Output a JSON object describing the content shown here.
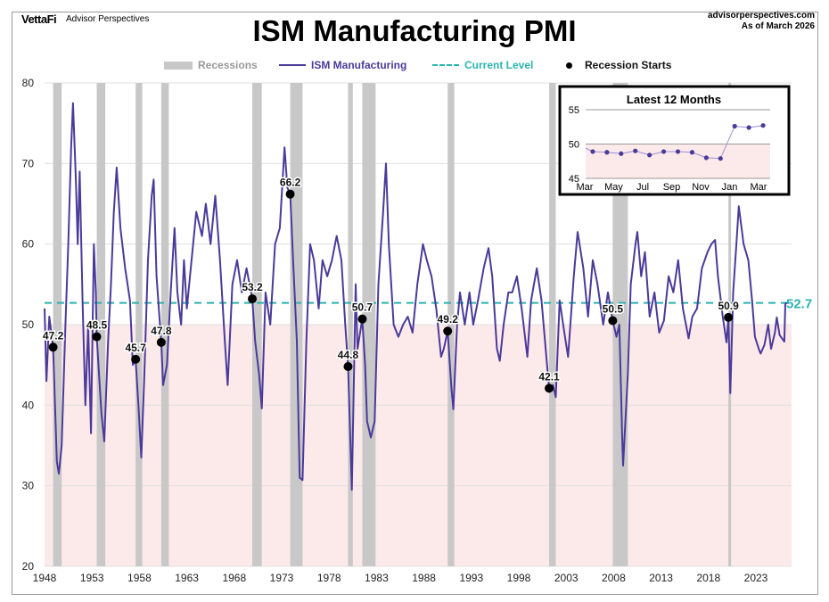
{
  "header": {
    "brand": "VettaFi",
    "brand_sub": "Advisor Perspectives",
    "site": "advisorperspectives.com",
    "as_of": "As of  March 2026"
  },
  "colors": {
    "line": "#4B3A9A",
    "current": "#2BB3B0",
    "recession": "#C8C8C8",
    "below50": "#FCEAEA",
    "marker": "#000000"
  },
  "chart_data": {
    "type": "line",
    "title": "ISM Manufacturing PMI",
    "legend": {
      "placement": "top",
      "items": [
        "Recessions",
        "ISM Manufacturing",
        "Current Level",
        "Recession Starts"
      ]
    },
    "ylim": [
      20,
      80
    ],
    "xlim": [
      1948,
      2026.3
    ],
    "yticks": [
      20,
      30,
      40,
      50,
      60,
      70,
      80
    ],
    "xticks": [
      1948,
      1953,
      1958,
      1963,
      1968,
      1973,
      1978,
      1983,
      1988,
      1993,
      1998,
      2003,
      2008,
      2013,
      2018,
      2023
    ],
    "current_level": 52.7,
    "current_label": "52.7",
    "recessions": [
      [
        1948.9,
        1949.8
      ],
      [
        1953.5,
        1954.4
      ],
      [
        1957.6,
        1958.3
      ],
      [
        1960.3,
        1961.1
      ],
      [
        1969.9,
        1970.9
      ],
      [
        1973.9,
        1975.2
      ],
      [
        1980.0,
        1980.5
      ],
      [
        1981.5,
        1982.9
      ],
      [
        1990.5,
        1991.2
      ],
      [
        2001.2,
        2001.9
      ],
      [
        2007.9,
        2009.5
      ],
      [
        2020.1,
        2020.3
      ]
    ],
    "recession_starts": [
      [
        1948.9,
        47.2,
        "47.2"
      ],
      [
        1953.5,
        48.5,
        "48.5"
      ],
      [
        1957.6,
        45.7,
        "45.7"
      ],
      [
        1960.3,
        47.8,
        "47.8"
      ],
      [
        1969.9,
        53.2,
        "53.2"
      ],
      [
        1973.9,
        66.2,
        "66.2"
      ],
      [
        1980.0,
        44.8,
        "44.8"
      ],
      [
        1981.5,
        50.7,
        "50.7"
      ],
      [
        1990.5,
        49.2,
        "49.2"
      ],
      [
        2001.2,
        42.1,
        "42.1"
      ],
      [
        2007.9,
        50.5,
        "50.5"
      ],
      [
        2020.1,
        50.9,
        "50.9"
      ]
    ],
    "series": [
      {
        "name": "ISM Manufacturing",
        "points": [
          [
            1948.0,
            52
          ],
          [
            1948.2,
            43
          ],
          [
            1948.5,
            51
          ],
          [
            1948.9,
            47.2
          ],
          [
            1949.3,
            33
          ],
          [
            1949.5,
            31.5
          ],
          [
            1949.8,
            35
          ],
          [
            1950.2,
            50
          ],
          [
            1950.5,
            60
          ],
          [
            1950.8,
            72
          ],
          [
            1951.0,
            77.5
          ],
          [
            1951.3,
            68
          ],
          [
            1951.5,
            60
          ],
          [
            1951.7,
            69
          ],
          [
            1952.0,
            53
          ],
          [
            1952.3,
            40
          ],
          [
            1952.6,
            50
          ],
          [
            1952.9,
            36.5
          ],
          [
            1953.2,
            60
          ],
          [
            1953.4,
            54
          ],
          [
            1953.5,
            48.5
          ],
          [
            1954.0,
            39
          ],
          [
            1954.3,
            35.5
          ],
          [
            1954.7,
            48
          ],
          [
            1955.0,
            55
          ],
          [
            1955.3,
            64
          ],
          [
            1955.6,
            69.5
          ],
          [
            1956.0,
            62
          ],
          [
            1956.5,
            57
          ],
          [
            1957.0,
            53
          ],
          [
            1957.3,
            45
          ],
          [
            1957.6,
            45.7
          ],
          [
            1957.9,
            40
          ],
          [
            1958.2,
            33.5
          ],
          [
            1958.5,
            43
          ],
          [
            1958.9,
            58
          ],
          [
            1959.3,
            66
          ],
          [
            1959.5,
            68
          ],
          [
            1959.8,
            56
          ],
          [
            1960.3,
            47.8
          ],
          [
            1960.5,
            42.5
          ],
          [
            1960.9,
            45
          ],
          [
            1961.3,
            54
          ],
          [
            1961.7,
            62
          ],
          [
            1962.0,
            54
          ],
          [
            1962.4,
            50
          ],
          [
            1962.7,
            58
          ],
          [
            1963.0,
            52
          ],
          [
            1963.5,
            58
          ],
          [
            1964.0,
            64
          ],
          [
            1964.6,
            61
          ],
          [
            1965.0,
            65
          ],
          [
            1965.5,
            60
          ],
          [
            1966.0,
            66
          ],
          [
            1966.5,
            58
          ],
          [
            1967.0,
            48
          ],
          [
            1967.3,
            42.5
          ],
          [
            1967.8,
            55
          ],
          [
            1968.3,
            58
          ],
          [
            1968.8,
            54
          ],
          [
            1969.3,
            57
          ],
          [
            1969.9,
            53.2
          ],
          [
            1970.2,
            48
          ],
          [
            1970.6,
            44
          ],
          [
            1970.9,
            39.6
          ],
          [
            1971.3,
            54
          ],
          [
            1971.8,
            50
          ],
          [
            1972.3,
            60
          ],
          [
            1972.8,
            62
          ],
          [
            1973.3,
            72
          ],
          [
            1973.6,
            67
          ],
          [
            1973.9,
            66.2
          ],
          [
            1974.2,
            58
          ],
          [
            1974.6,
            48
          ],
          [
            1974.9,
            31
          ],
          [
            1975.2,
            30.7
          ],
          [
            1975.6,
            48
          ],
          [
            1976.0,
            60
          ],
          [
            1976.4,
            58
          ],
          [
            1976.9,
            52
          ],
          [
            1977.3,
            58
          ],
          [
            1977.8,
            56
          ],
          [
            1978.3,
            58
          ],
          [
            1978.8,
            61
          ],
          [
            1979.3,
            58
          ],
          [
            1979.7,
            50
          ],
          [
            1980.0,
            44.8
          ],
          [
            1980.4,
            29.5
          ],
          [
            1980.8,
            55
          ],
          [
            1981.0,
            47
          ],
          [
            1981.5,
            50.7
          ],
          [
            1981.8,
            45
          ],
          [
            1982.0,
            38
          ],
          [
            1982.4,
            36
          ],
          [
            1982.8,
            38
          ],
          [
            1983.2,
            55
          ],
          [
            1983.7,
            64
          ],
          [
            1984.0,
            70
          ],
          [
            1984.3,
            60
          ],
          [
            1984.8,
            50
          ],
          [
            1985.3,
            48.5
          ],
          [
            1985.8,
            50
          ],
          [
            1986.3,
            51
          ],
          [
            1986.8,
            49
          ],
          [
            1987.3,
            55
          ],
          [
            1987.9,
            60
          ],
          [
            1988.3,
            58
          ],
          [
            1988.8,
            56
          ],
          [
            1989.3,
            52
          ],
          [
            1989.8,
            46
          ],
          [
            1990.1,
            47
          ],
          [
            1990.5,
            49.2
          ],
          [
            1990.9,
            42
          ],
          [
            1991.1,
            39.5
          ],
          [
            1991.5,
            50
          ],
          [
            1991.8,
            54
          ],
          [
            1992.3,
            50
          ],
          [
            1992.8,
            54
          ],
          [
            1993.2,
            50
          ],
          [
            1993.7,
            53
          ],
          [
            1994.3,
            57
          ],
          [
            1994.8,
            59.5
          ],
          [
            1995.2,
            56
          ],
          [
            1995.7,
            47
          ],
          [
            1996.0,
            45.5
          ],
          [
            1996.4,
            50
          ],
          [
            1996.9,
            54
          ],
          [
            1997.3,
            54
          ],
          [
            1997.8,
            56
          ],
          [
            1998.3,
            52
          ],
          [
            1998.9,
            46
          ],
          [
            1999.3,
            53
          ],
          [
            1999.9,
            57
          ],
          [
            2000.4,
            53
          ],
          [
            2000.9,
            46
          ],
          [
            2001.2,
            42.1
          ],
          [
            2001.6,
            42.5
          ],
          [
            2001.9,
            41
          ],
          [
            2002.3,
            53
          ],
          [
            2002.8,
            49
          ],
          [
            2003.2,
            46
          ],
          [
            2003.8,
            56
          ],
          [
            2004.2,
            61.5
          ],
          [
            2004.8,
            57
          ],
          [
            2005.3,
            51
          ],
          [
            2005.8,
            58
          ],
          [
            2006.3,
            55
          ],
          [
            2006.9,
            50
          ],
          [
            2007.4,
            54
          ],
          [
            2007.9,
            50.5
          ],
          [
            2008.3,
            48.5
          ],
          [
            2008.6,
            50
          ],
          [
            2008.9,
            36
          ],
          [
            2009.0,
            32.5
          ],
          [
            2009.5,
            44
          ],
          [
            2009.8,
            55
          ],
          [
            2010.3,
            60
          ],
          [
            2010.5,
            61.5
          ],
          [
            2010.9,
            56
          ],
          [
            2011.3,
            59
          ],
          [
            2011.8,
            51
          ],
          [
            2012.3,
            54
          ],
          [
            2012.8,
            49
          ],
          [
            2013.3,
            50.5
          ],
          [
            2013.8,
            56
          ],
          [
            2014.3,
            54
          ],
          [
            2014.8,
            58
          ],
          [
            2015.3,
            52
          ],
          [
            2015.9,
            48.3
          ],
          [
            2016.3,
            51
          ],
          [
            2016.8,
            52
          ],
          [
            2017.3,
            57
          ],
          [
            2017.9,
            59
          ],
          [
            2018.3,
            60
          ],
          [
            2018.7,
            60.5
          ],
          [
            2019.0,
            56
          ],
          [
            2019.5,
            51
          ],
          [
            2019.9,
            47.8
          ],
          [
            2020.1,
            50.9
          ],
          [
            2020.3,
            41.5
          ],
          [
            2020.6,
            54
          ],
          [
            2021.0,
            61
          ],
          [
            2021.2,
            64.7
          ],
          [
            2021.7,
            60
          ],
          [
            2022.2,
            58
          ],
          [
            2022.6,
            53
          ],
          [
            2022.9,
            48.5
          ],
          [
            2023.3,
            47
          ],
          [
            2023.5,
            46.4
          ],
          [
            2023.9,
            47.5
          ],
          [
            2024.3,
            50
          ],
          [
            2024.6,
            47
          ],
          [
            2025.0,
            49
          ],
          [
            2025.2,
            50.9
          ],
          [
            2025.5,
            48.7
          ],
          [
            2026.0,
            47.9
          ],
          [
            2026.1,
            52.6
          ],
          [
            2026.25,
            52.7
          ]
        ]
      }
    ],
    "inset": {
      "title": "Latest 12 Months",
      "ylim": [
        45,
        55
      ],
      "yticks": [
        45,
        50,
        55
      ],
      "xlabels": [
        "Mar",
        "May",
        "Jul",
        "Sep",
        "Nov",
        "Jan",
        "Mar"
      ],
      "values": [
        48.9,
        48.8,
        48.6,
        49.0,
        48.4,
        48.9,
        48.9,
        48.8,
        48.0,
        47.9,
        52.6,
        52.4,
        52.7
      ]
    }
  }
}
